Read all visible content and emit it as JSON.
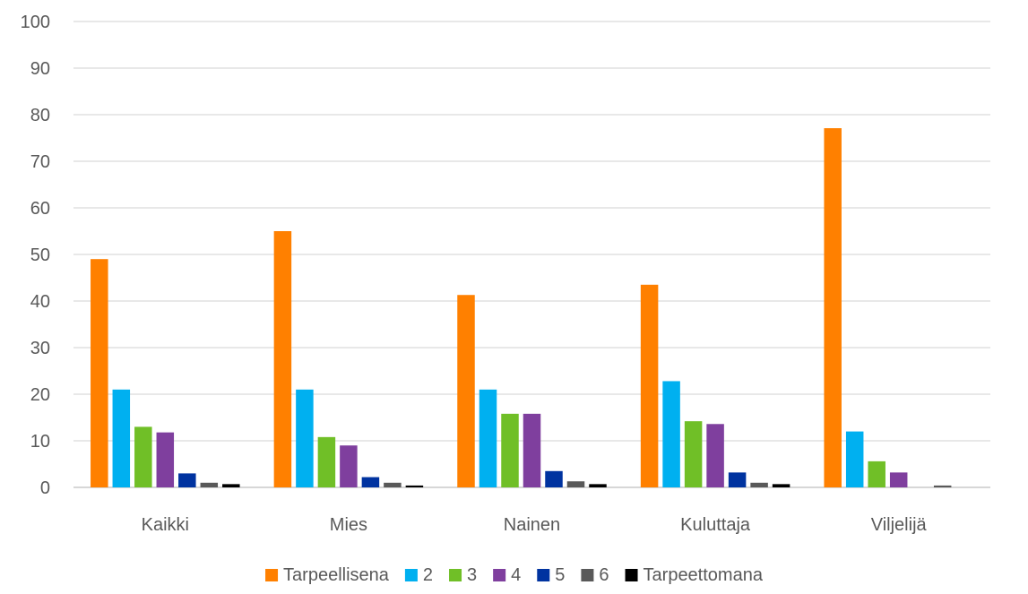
{
  "chart_data": {
    "type": "bar",
    "title": "",
    "xlabel": "",
    "ylabel": "",
    "ylim": [
      0,
      100
    ],
    "yticks": [
      0,
      10,
      20,
      30,
      40,
      50,
      60,
      70,
      80,
      90,
      100
    ],
    "grid": true,
    "legend_position": "bottom",
    "categories": [
      "Kaikki",
      "Mies",
      "Nainen",
      "Kuluttaja",
      "Viljelijä"
    ],
    "series": [
      {
        "name": "Tarpeellisena",
        "color": "#FF8000",
        "values": [
          49,
          55,
          41.3,
          43.5,
          77.1
        ]
      },
      {
        "name": "2",
        "color": "#00B0F0",
        "values": [
          21,
          21,
          21,
          22.8,
          12
        ]
      },
      {
        "name": "3",
        "color": "#70BF27",
        "values": [
          13,
          10.8,
          15.8,
          14.2,
          5.6
        ]
      },
      {
        "name": "4",
        "color": "#7F3F9E",
        "values": [
          11.8,
          9,
          15.8,
          13.6,
          3.2
        ]
      },
      {
        "name": "5",
        "color": "#0033A0",
        "values": [
          3,
          2.2,
          3.5,
          3.2,
          0
        ]
      },
      {
        "name": "6",
        "color": "#595959",
        "values": [
          1,
          1,
          1.3,
          1,
          0.4
        ]
      },
      {
        "name": "Tarpeettomana",
        "color": "#000000",
        "values": [
          0.7,
          0.4,
          0.7,
          0.7,
          0
        ]
      }
    ]
  }
}
